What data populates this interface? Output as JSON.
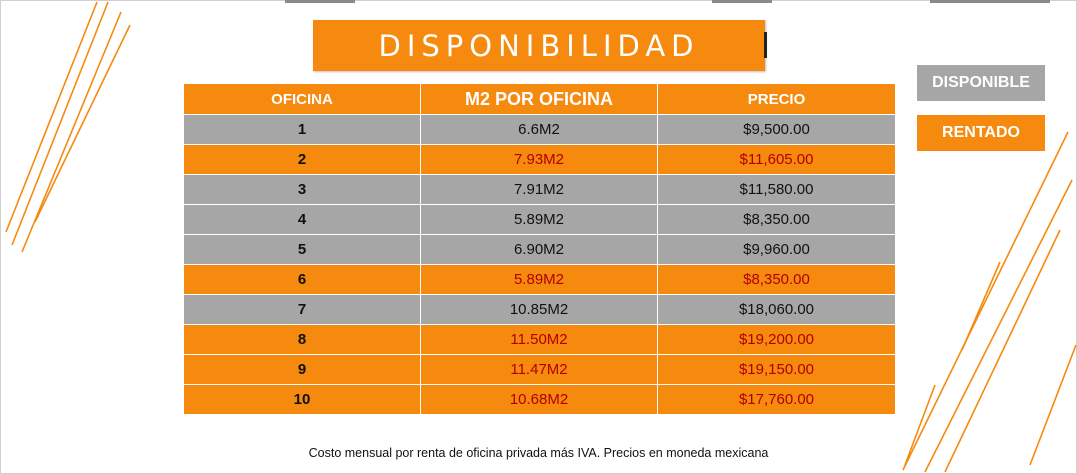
{
  "title": "DISPONIBILIDAD",
  "table": {
    "headers": [
      "OFICINA",
      "M2 POR OFICINA",
      "PRECIO"
    ],
    "rows": [
      {
        "oficina": "1",
        "m2": "6.6M2",
        "precio": "$9,500.00",
        "status": "disponible"
      },
      {
        "oficina": "2",
        "m2": "7.93M2",
        "precio": "$11,605.00",
        "status": "rentado"
      },
      {
        "oficina": "3",
        "m2": "7.91M2",
        "precio": "$11,580.00",
        "status": "disponible"
      },
      {
        "oficina": "4",
        "m2": "5.89M2",
        "precio": "$8,350.00",
        "status": "disponible"
      },
      {
        "oficina": "5",
        "m2": "6.90M2",
        "precio": "$9,960.00",
        "status": "disponible"
      },
      {
        "oficina": "6",
        "m2": "5.89M2",
        "precio": "$8,350.00",
        "status": "rentado"
      },
      {
        "oficina": "7",
        "m2": "10.85M2",
        "precio": "$18,060.00",
        "status": "disponible"
      },
      {
        "oficina": "8",
        "m2": "11.50M2",
        "precio": "$19,200.00",
        "status": "rentado"
      },
      {
        "oficina": "9",
        "m2": "11.47M2",
        "precio": "$19,150.00",
        "status": "rentado"
      },
      {
        "oficina": "10",
        "m2": "10.68M2",
        "precio": "$17,760.00",
        "status": "rentado"
      }
    ]
  },
  "legend": {
    "disponible": "DISPONIBLE",
    "rentado": "RENTADO"
  },
  "footnote": "Costo mensual por renta de oficina privada más IVA. Precios en moneda mexicana",
  "colors": {
    "accent_orange": "#f58a0f",
    "available_gray": "#a6a6a6",
    "rented_text": "#b00000"
  }
}
